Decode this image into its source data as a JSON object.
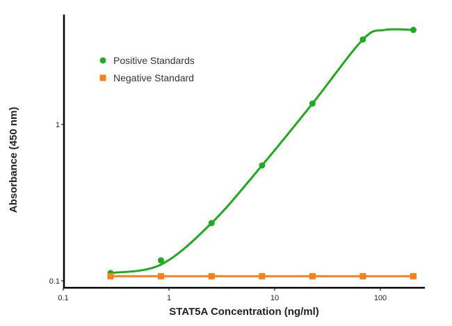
{
  "chart_data": {
    "type": "line",
    "title": "",
    "xlabel": "STAT5A Concentration (ng/ml)",
    "ylabel": "Absorbance (450 nm)",
    "xscale": "log",
    "yscale": "log",
    "xlim": [
      0.1,
      260
    ],
    "ylim": [
      0.09,
      5
    ],
    "xticks": [
      {
        "value": 0.1,
        "label": "0.1"
      },
      {
        "value": 1,
        "label": "1"
      },
      {
        "value": 10,
        "label": "10"
      },
      {
        "value": 100,
        "label": "100"
      }
    ],
    "yticks": [
      {
        "value": 0.1,
        "label": "0.1"
      },
      {
        "value": 1,
        "label": "1"
      }
    ],
    "grid": false,
    "legend_position": "top-left",
    "series": [
      {
        "name": "Positive Standards",
        "color": "#1faa1f",
        "marker": "circle",
        "x": [
          0.28,
          0.84,
          2.53,
          7.6,
          22.8,
          68.3,
          205
        ],
        "y": [
          0.112,
          0.135,
          0.234,
          0.547,
          1.36,
          3.49,
          4.02
        ]
      },
      {
        "name": "Negative Standard",
        "color": "#f5821f",
        "marker": "square",
        "x": [
          0.28,
          0.84,
          2.53,
          7.6,
          22.8,
          68.3,
          205
        ],
        "y": [
          0.107,
          0.107,
          0.107,
          0.107,
          0.107,
          0.107,
          0.107
        ]
      }
    ]
  }
}
